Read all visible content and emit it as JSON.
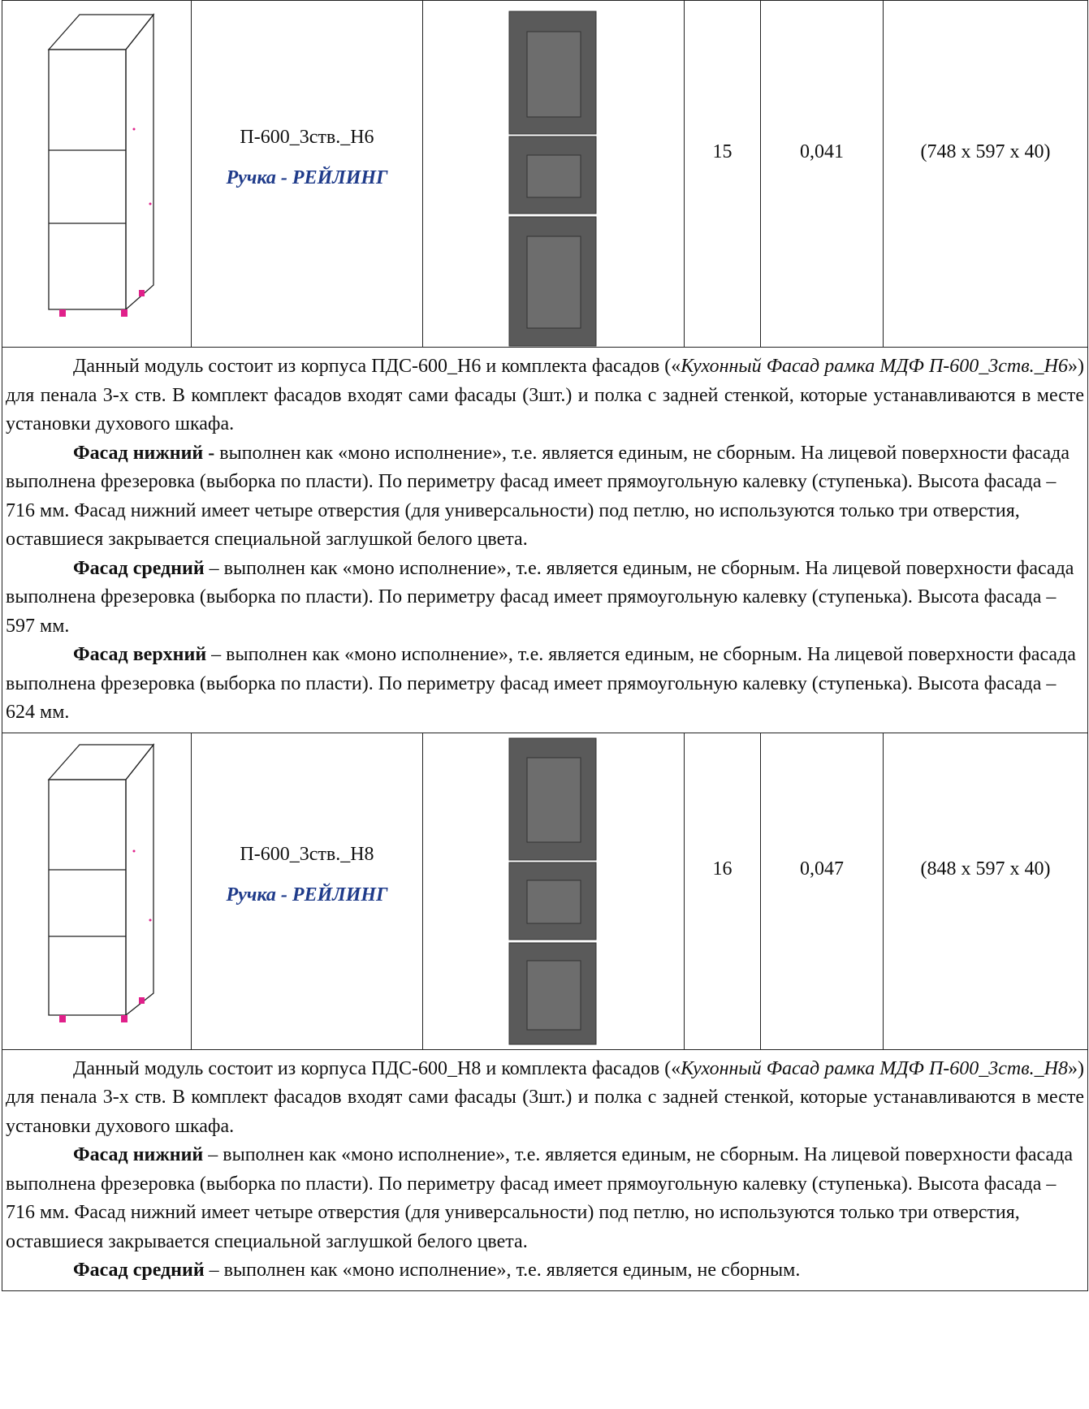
{
  "rows": [
    {
      "name": "П-600_3ств._Н6",
      "handle": "Ручка - РЕЙЛИНГ",
      "quantity": 15,
      "volume": "0,041",
      "dimensions": "(748 х 597 х 40)",
      "description": [
        [
          "Данный модуль состоит из корпуса ПДС-600_Н6 и комплекта фасадов («",
          "Кухонный Фасад рамка МДФ П-600_3ств._Н6",
          "») для пенала 3-х ств. В комплект фасадов входят сами фасады (3шт.) и полка с задней стенкой, которые устанавливаются в месте установки духового шкафа."
        ],
        [
          "Фасад нижний -",
          " выполнен как «моно исполнение», т.е. является единым, не сборным. На лицевой поверхности фасада выполнена фрезеровка (выборка по пласти). По периметру фасад имеет прямоугольную калевку (ступенька). Высота фасада – 716 мм. Фасад нижний имеет четыре отверстия (для универсальности) под петлю, но используются только три отверстия, оставшиеся закрывается специальной заглушкой белого цвета."
        ],
        [
          "Фасад средний",
          " – выполнен как «моно исполнение», т.е. является единым, не сборным. На лицевой поверхности фасада выполнена фрезеровка (выборка по пласти). По периметру фасад имеет прямоугольную калевку (ступенька). Высота фасада – 597 мм."
        ],
        [
          "Фасад верхний",
          " – выполнен как «моно исполнение», т.е. является единым, не сборным. На лицевой поверхности фасада выполнена фрезеровка (выборка по пласти). По периметру фасад имеет прямоугольную калевку (ступенька). Высота фасада – 624 мм."
        ]
      ]
    },
    {
      "name": "П-600_3ств._Н8",
      "handle": "Ручка - РЕЙЛИНГ",
      "quantity": 16,
      "volume": "0,047",
      "dimensions": "(848 х 597 х 40)",
      "description": [
        [
          "Данный модуль состоит из корпуса ПДС-600_Н8 и комплекта фасадов («",
          "Кухонный Фасад рамка МДФ П-600_3ств._Н8",
          "») для пенала 3-х ств. В комплект фасадов входят сами фасады (3шт.) и полка с задней стенкой, которые устанавливаются в месте установки духового шкафа."
        ],
        [
          "Фасад нижний",
          " – выполнен как «моно исполнение», т.е. является единым, не сборным. На лицевой поверхности фасада выполнена фрезеровка (выборка по пласти). По периметру фасад имеет прямоугольную калевку (ступенька). Высота фасада – 716 мм. Фасад нижний имеет четыре отверстия (для универсальности) под петлю, но используются только три отверстия, оставшиеся закрывается специальной заглушкой белого цвета."
        ],
        [
          "Фасад средний",
          " – выполнен как «моно исполнение», т.е. является единым, не сборным."
        ]
      ]
    }
  ]
}
